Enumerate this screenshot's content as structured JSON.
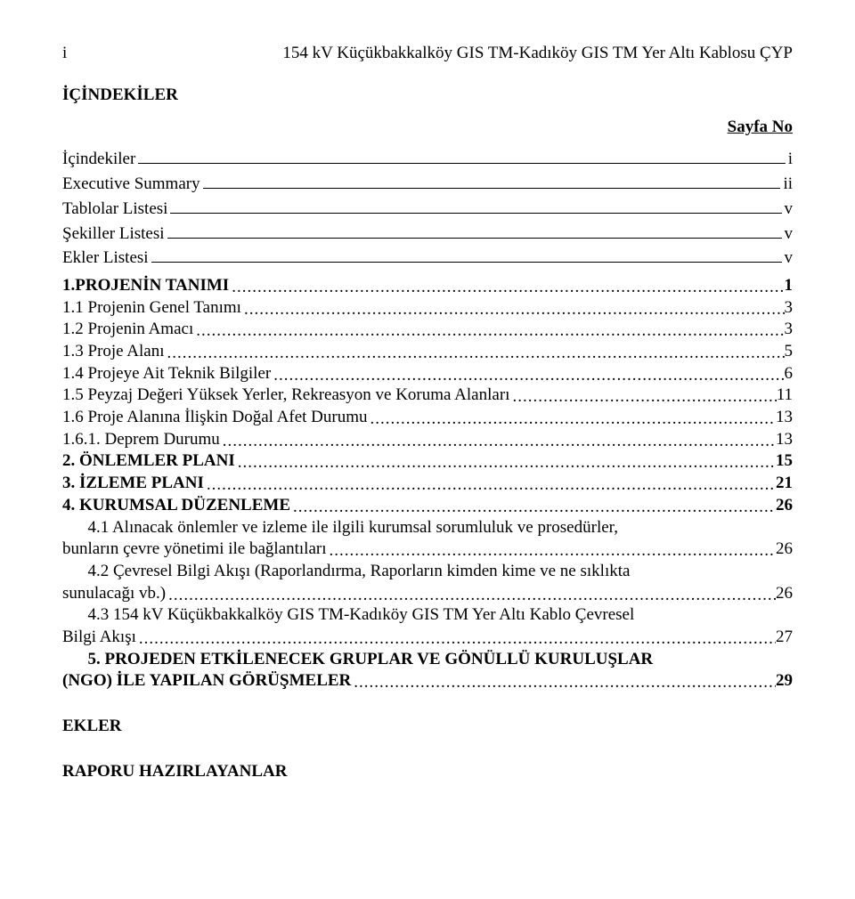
{
  "header": {
    "page_marker": "i",
    "doc_title": "154 kV Küçükbakkalköy GIS TM-Kadıköy GIS TM Yer Altı Kablosu ÇYP"
  },
  "headings": {
    "toc_title": "İÇİNDEKİLER",
    "page_col": "Sayfa No",
    "ekler": "EKLER",
    "raporu": "RAPORU HAZIRLAYANLAR"
  },
  "front_matter": [
    {
      "label": "İçindekiler",
      "page": "i"
    },
    {
      "label": "Executive Summary",
      "page": "ii"
    },
    {
      "label": "Tablolar Listesi",
      "page": "v"
    },
    {
      "label": "Şekiller Listesi",
      "page": "v"
    },
    {
      "label": "Ekler Listesi",
      "page": "v"
    }
  ],
  "toc": [
    {
      "label": "1.PROJENİN TANIMI",
      "page": "1",
      "bold": true
    },
    {
      "label": "1.1 Projenin Genel Tanımı",
      "page": "3",
      "bold": false
    },
    {
      "label": "1.2 Projenin Amacı",
      "page": "3",
      "bold": false
    },
    {
      "label": "1.3 Proje Alanı",
      "page": "5",
      "bold": false
    },
    {
      "label": "1.4 Projeye Ait Teknik Bilgiler",
      "page": "6",
      "bold": false
    },
    {
      "label": "1.5 Peyzaj Değeri Yüksek Yerler, Rekreasyon ve Koruma Alanları",
      "page": "11",
      "bold": false
    },
    {
      "label": "1.6 Proje Alanına İlişkin Doğal Afet Durumu",
      "page": "13",
      "bold": false
    },
    {
      "label": "1.6.1. Deprem Durumu",
      "page": "13",
      "bold": false
    },
    {
      "label": "2. ÖNLEMLER PLANI",
      "page": "15",
      "bold": true
    },
    {
      "label": "3. İZLEME PLANI",
      "page": "21",
      "bold": true
    },
    {
      "label": "4. KURUMSAL DÜZENLEME",
      "page": "26",
      "bold": true
    },
    {
      "label": "4.1 Alınacak önlemler ve izleme ile ilgili kurumsal sorumluluk ve prosedürler, bunların çevre yönetimi ile bağlantıları",
      "page": "26",
      "bold": false,
      "wrap_label": "4.1 Alınacak önlemler ve izleme ile ilgili kurumsal sorumluluk ve prosedürler,",
      "wrap_tail": "bunların çevre yönetimi ile bağlantıları"
    },
    {
      "label": "4.2 Çevresel Bilgi Akışı (Raporlandırma, Raporların kimden kime ve ne sıklıkta sunulacağı vb.)",
      "page": "26",
      "bold": false,
      "wrap_label": "4.2 Çevresel Bilgi Akışı (Raporlandırma, Raporların kimden kime ve ne sıklıkta",
      "wrap_tail": "sunulacağı vb.)"
    },
    {
      "label": "4.3 154 kV Küçükbakkalköy GIS TM-Kadıköy GIS TM Yer Altı Kablo Çevresel Bilgi Akışı",
      "page": "27",
      "bold": false,
      "wrap_label": "4.3 154 kV Küçükbakkalköy GIS TM-Kadıköy GIS TM Yer Altı Kablo Çevresel",
      "wrap_tail": "Bilgi Akışı"
    },
    {
      "label": "5. PROJEDEN ETKİLENECEK GRUPLAR VE GÖNÜLLÜ KURULUŞLAR (NGO) İLE YAPILAN GÖRÜŞMELER",
      "page": "29",
      "bold": true,
      "wrap_label": "5. PROJEDEN ETKİLENECEK GRUPLAR VE GÖNÜLLÜ KURULUŞLAR",
      "wrap_tail": "(NGO) İLE YAPILAN GÖRÜŞMELER"
    }
  ]
}
